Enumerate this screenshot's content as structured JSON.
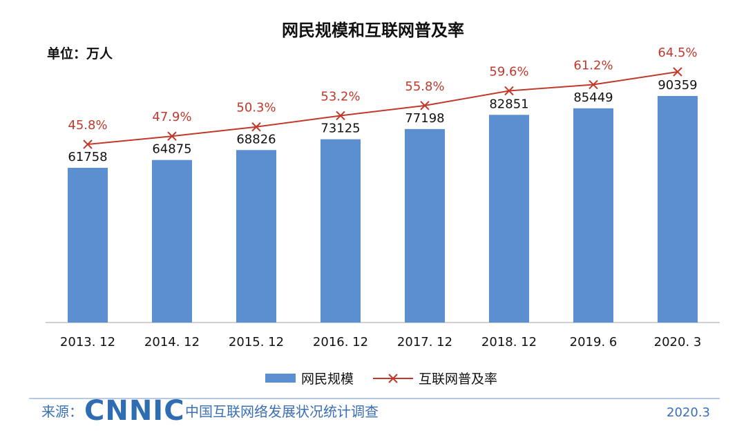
{
  "chart_data": {
    "type": "bar",
    "title": "网民规模和互联网普及率",
    "unit": "单位：万人",
    "categories": [
      "2013.12",
      "2014.12",
      "2015.12",
      "2016.12",
      "2017.12",
      "2018.12",
      "2019.6",
      "2020.3"
    ],
    "series": [
      {
        "name": "网民规模",
        "type": "bar",
        "values": [
          61758,
          64875,
          68826,
          73125,
          77198,
          82851,
          85449,
          90359
        ],
        "color": "#5b8fd0"
      },
      {
        "name": "互联网普及率",
        "type": "line",
        "values": [
          45.8,
          47.9,
          50.3,
          53.2,
          55.8,
          59.6,
          61.2,
          64.5
        ],
        "labels": [
          "45.8%",
          "47.9%",
          "50.3%",
          "53.2%",
          "55.8%",
          "59.6%",
          "61.2%",
          "64.5%"
        ],
        "color": "#c0392b"
      }
    ],
    "ylim": [
      0,
      100000
    ],
    "y2lim": [
      0,
      100
    ],
    "grid": false,
    "legend_position": "bottom"
  },
  "footer": {
    "source_label": "来源：",
    "logo_text": "CNNIC",
    "source_name": "中国互联网络发展状况统计调查",
    "date": "2020.3"
  }
}
